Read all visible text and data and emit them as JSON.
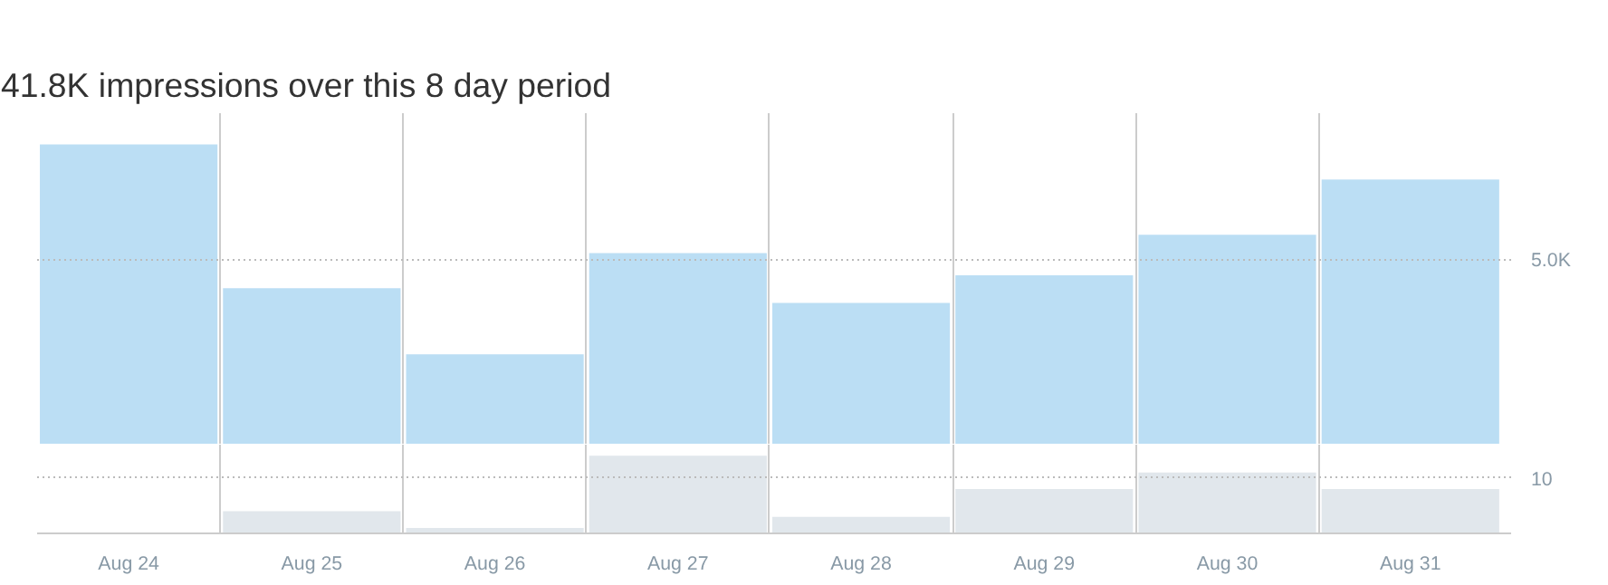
{
  "chart_data": [
    {
      "type": "bar",
      "title": "41.8K impressions over this 8 day period",
      "values": [
        8150,
        4250,
        2450,
        5200,
        3850,
        4600,
        5700,
        7200
      ],
      "color": "#bbdef4",
      "ylim": [
        0,
        9000
      ],
      "yticks": [
        {
          "value": 5000,
          "label": "5.0K"
        }
      ],
      "grid": "x",
      "tick_labels": "y",
      "ref_lines": [
        {
          "axis": "y",
          "value": 5000,
          "color": "#bbbbbb",
          "line_style": "dotted"
        }
      ]
    },
    {
      "type": "bar",
      "categories": [
        "Aug 24",
        "Aug 25",
        "Aug 26",
        "Aug 27",
        "Aug 28",
        "Aug 29",
        "Aug 30",
        "Aug 31"
      ],
      "values": [
        0,
        4,
        1,
        14,
        3,
        8,
        11,
        8
      ],
      "color": "#e1e7ec",
      "ylim": [
        0,
        16
      ],
      "yticks": [
        10
      ],
      "grid": "x",
      "ref_lines": [
        {
          "axis": "y",
          "value": 10,
          "color": "#bbbbbb",
          "line_style": "dotted"
        }
      ]
    }
  ]
}
